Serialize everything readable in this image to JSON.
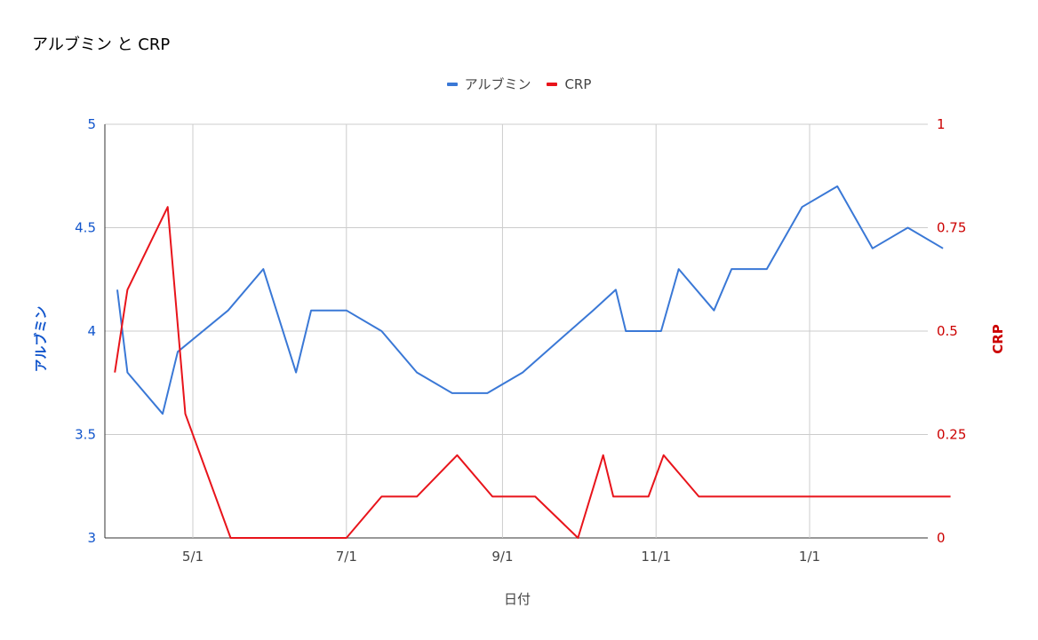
{
  "chart_data": {
    "type": "line",
    "title": "アルブミン と CRP",
    "xlabel": "日付",
    "ylabel_left": "アルブミン",
    "ylabel_right": "CRP",
    "ylim_left": [
      3,
      5
    ],
    "ylim_right": [
      0,
      1
    ],
    "yticks_left": [
      "3",
      "3.5",
      "4",
      "4.5",
      "5"
    ],
    "yticks_right": [
      "0",
      "0.25",
      "0.5",
      "0.75",
      "1"
    ],
    "xticks": [
      "5/1",
      "7/1",
      "9/1",
      "11/1",
      "1/1"
    ],
    "grid": true,
    "legend_position": "top",
    "series": [
      {
        "name": "アルブミン",
        "axis": "left",
        "color": "#3a78d6",
        "points": [
          [
            "2023-04-01",
            4.2
          ],
          [
            "2023-04-05",
            3.8
          ],
          [
            "2023-04-19",
            3.6
          ],
          [
            "2023-04-25",
            3.9
          ],
          [
            "2023-05-15",
            4.1
          ],
          [
            "2023-05-29",
            4.3
          ],
          [
            "2023-06-11",
            3.8
          ],
          [
            "2023-06-17",
            4.1
          ],
          [
            "2023-07-01",
            4.1
          ],
          [
            "2023-07-15",
            4.0
          ],
          [
            "2023-07-29",
            3.8
          ],
          [
            "2023-08-12",
            3.7
          ],
          [
            "2023-08-26",
            3.7
          ],
          [
            "2023-09-09",
            3.8
          ],
          [
            "2023-09-23",
            3.95
          ],
          [
            "2023-10-07",
            4.1
          ],
          [
            "2023-10-16",
            4.2
          ],
          [
            "2023-10-20",
            4.0
          ],
          [
            "2023-11-03",
            4.0
          ],
          [
            "2023-11-10",
            4.3
          ],
          [
            "2023-11-24",
            4.1
          ],
          [
            "2023-12-01",
            4.3
          ],
          [
            "2023-12-15",
            4.3
          ],
          [
            "2023-12-29",
            4.6
          ],
          [
            "2024-01-12",
            4.7
          ],
          [
            "2024-01-26",
            4.4
          ],
          [
            "2024-02-09",
            4.5
          ],
          [
            "2024-02-23",
            4.4
          ]
        ]
      },
      {
        "name": "CRP",
        "axis": "right",
        "color": "#e8141b",
        "points": [
          [
            "2023-03-31",
            0.4
          ],
          [
            "2023-04-05",
            0.6
          ],
          [
            "2023-04-21",
            0.8
          ],
          [
            "2023-04-28",
            0.3
          ],
          [
            "2023-05-16",
            0.0
          ],
          [
            "2023-07-01",
            0.0
          ],
          [
            "2023-07-15",
            0.1
          ],
          [
            "2023-07-29",
            0.1
          ],
          [
            "2023-08-14",
            0.2
          ],
          [
            "2023-08-28",
            0.1
          ],
          [
            "2023-09-14",
            0.1
          ],
          [
            "2023-10-01",
            0.0
          ],
          [
            "2023-10-11",
            0.2
          ],
          [
            "2023-10-15",
            0.1
          ],
          [
            "2023-10-29",
            0.1
          ],
          [
            "2023-11-04",
            0.2
          ],
          [
            "2023-11-18",
            0.1
          ],
          [
            "2024-02-26",
            0.1
          ]
        ]
      }
    ]
  }
}
